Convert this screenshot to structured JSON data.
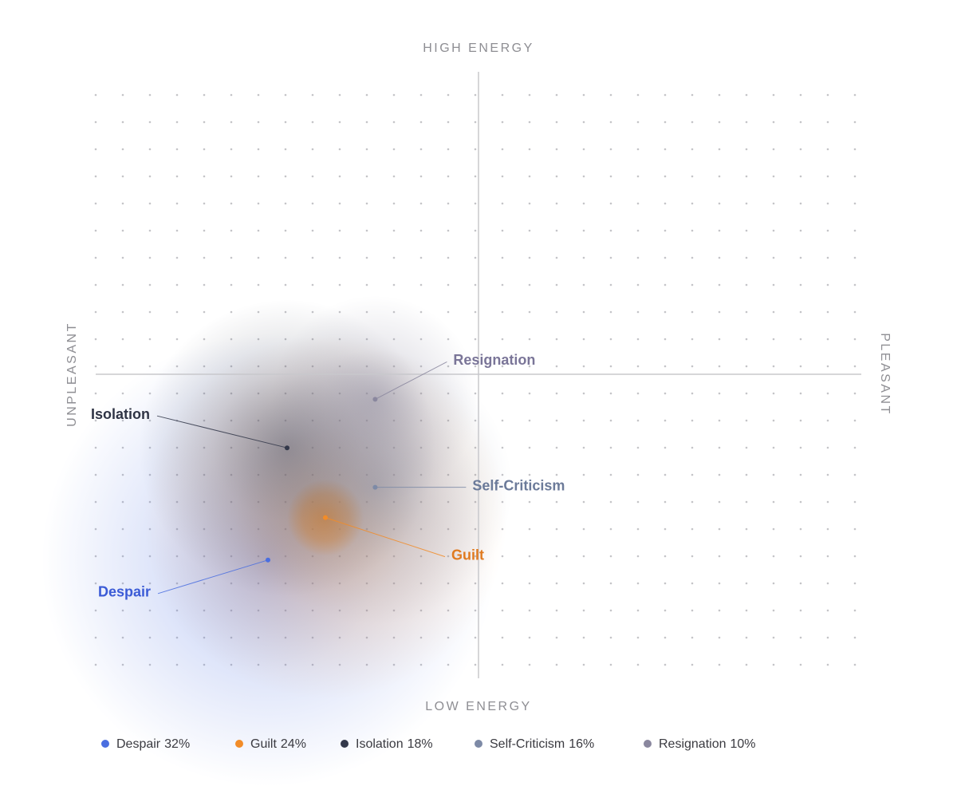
{
  "chart_data": {
    "type": "scatter",
    "axis_labels": {
      "top": "HIGH ENERGY",
      "bottom": "LOW ENERGY",
      "left": "UNPLEASANT",
      "right": "PLEASANT"
    },
    "xlim": [
      -1,
      1
    ],
    "ylim": [
      -1,
      1
    ],
    "series": [
      {
        "name": "Despair",
        "color": "#4a6ee0",
        "label_color": "#3b5bd6",
        "x": [
          -0.55
        ],
        "values": [
          -0.61
        ],
        "share": 32,
        "share_label": "32%"
      },
      {
        "name": "Guilt",
        "color": "#f28c28",
        "label_color": "#e07a1f",
        "x": [
          -0.4
        ],
        "values": [
          -0.47
        ],
        "share": 24,
        "share_label": "24%"
      },
      {
        "name": "Isolation",
        "color": "#33384a",
        "label_color": "#2f3445",
        "x": [
          -0.5
        ],
        "values": [
          -0.24
        ],
        "share": 18,
        "share_label": "18%"
      },
      {
        "name": "Self-Criticism",
        "color": "#7d8aa6",
        "label_color": "#6b7a99",
        "x": [
          -0.27
        ],
        "values": [
          -0.37
        ],
        "share": 16,
        "share_label": "16%"
      },
      {
        "name": "Resignation",
        "color": "#8a879e",
        "label_color": "#7a7598",
        "x": [
          -0.27
        ],
        "values": [
          -0.08
        ],
        "share": 10,
        "share_label": "10%"
      }
    ]
  }
}
